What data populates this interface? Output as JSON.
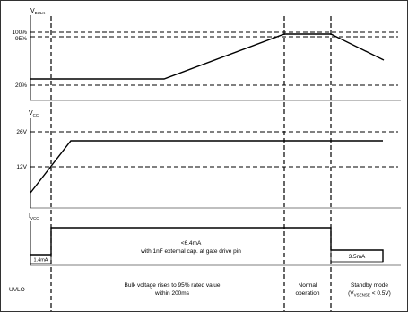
{
  "vbulk": {
    "axis_label": "V",
    "axis_sub": "BULK",
    "ticks": {
      "p100": "100%",
      "p95": "95%",
      "p20": "20%"
    }
  },
  "vcc": {
    "axis_label": "V",
    "axis_sub": "CC",
    "ticks": {
      "v26": "26V",
      "v12": "12V"
    }
  },
  "ivcc": {
    "axis_label": "I",
    "axis_sub": "VCC",
    "start_box": "1.4mA",
    "main_line1": "<6.4mA",
    "main_line2": "with 1nF external cap. at gate drive pin",
    "end_box": "3.5mA"
  },
  "phases": {
    "uvlo": "UVLO",
    "ramp_line1": "Bulk voltage rises to  95% rated value",
    "ramp_line2": "within 200ms",
    "normal_line1": "Normal",
    "normal_line2": "operation",
    "standby_line1": "Standby mode",
    "standby_pre": "(V",
    "standby_sub": "VSENSE",
    "standby_post": " < 0.5V)"
  }
}
